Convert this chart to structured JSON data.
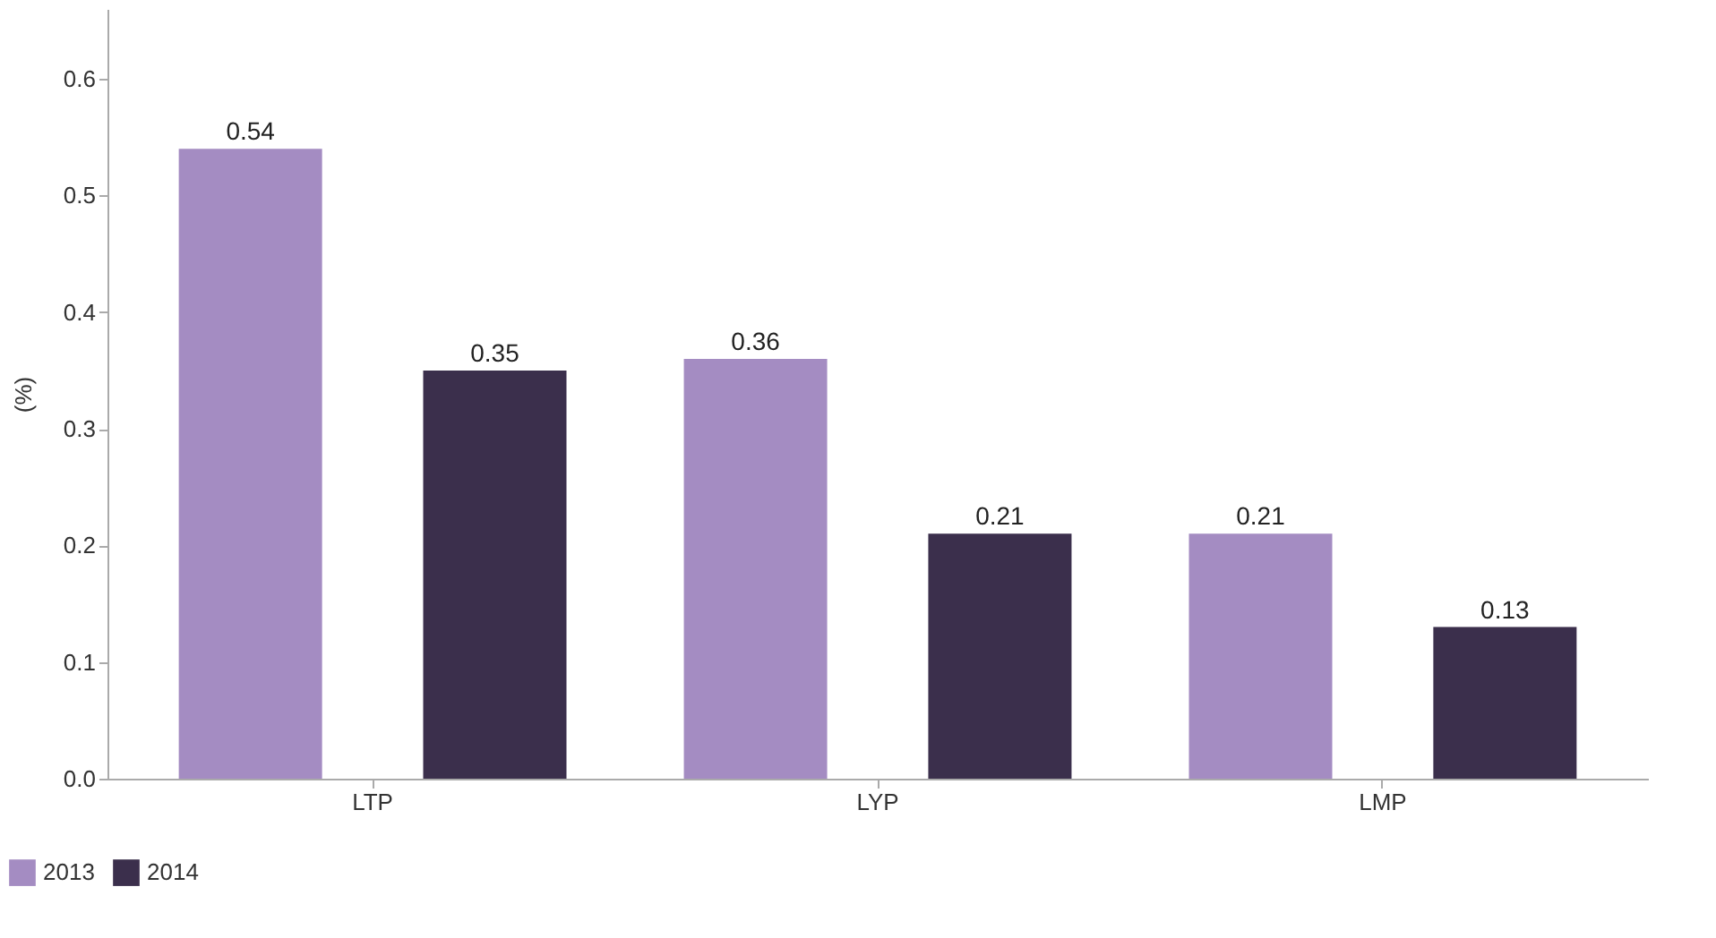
{
  "chart_data": {
    "type": "bar",
    "ylabel": "(%)",
    "categories": [
      "LTP",
      "LYP",
      "LMP"
    ],
    "series": [
      {
        "name": "2013",
        "color": "#a48cc2",
        "values": [
          0.54,
          0.36,
          0.21
        ]
      },
      {
        "name": "2014",
        "color": "#3b2f4c",
        "values": [
          0.35,
          0.21,
          0.13
        ]
      }
    ],
    "ylim": [
      0,
      0.66
    ],
    "yticks": [
      {
        "value": 0,
        "label": "0.0"
      },
      0.1,
      0.2,
      0.3,
      0.4,
      0.5,
      0.6
    ],
    "data_labels": true,
    "grid": false,
    "legend": "bottom left"
  }
}
